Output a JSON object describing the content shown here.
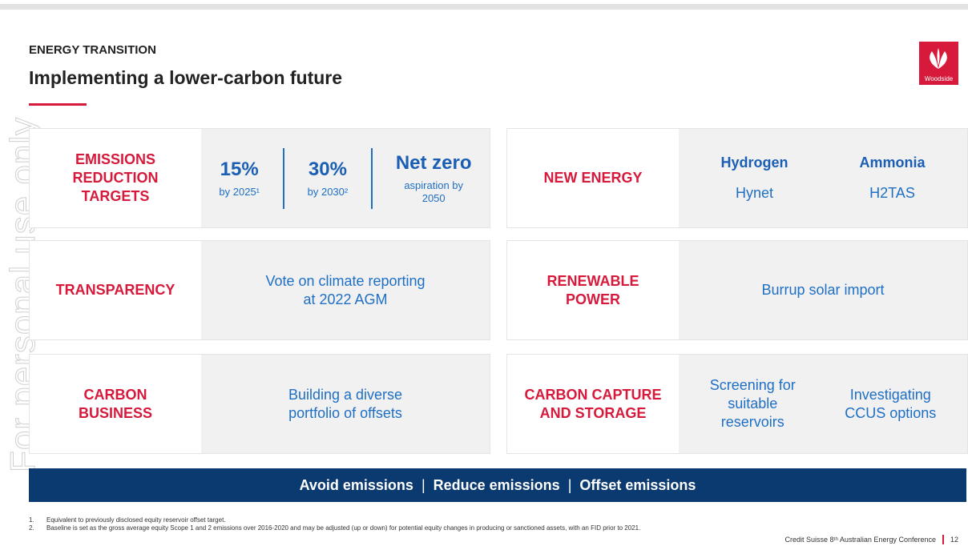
{
  "header": {
    "kicker": "ENERGY TRANSITION",
    "title": "Implementing a lower-carbon future",
    "logo": "Woodside"
  },
  "watermark": "For personal use only",
  "cards": [
    {
      "label_lines": [
        "EMISSIONS",
        "REDUCTION",
        "TARGETS"
      ],
      "style": "targets",
      "columns": [
        {
          "heading": "15%",
          "text_lines": [
            "by 2025¹"
          ]
        },
        {
          "heading": "30%",
          "text_lines": [
            "by 2030²"
          ]
        },
        {
          "heading": "Net zero",
          "text_lines": [
            "aspiration by",
            "2050"
          ]
        }
      ]
    },
    {
      "label_lines": [
        "NEW ENERGY"
      ],
      "style": "headed",
      "columns": [
        {
          "heading": "Hydrogen",
          "text_lines": [
            "Hynet"
          ]
        },
        {
          "heading": "Ammonia",
          "text_lines": [
            "H2TAS"
          ]
        }
      ]
    },
    {
      "label_lines": [
        "TRANSPARENCY"
      ],
      "style": "plain",
      "columns": [
        {
          "text_lines": [
            "Vote on climate reporting",
            "at 2022 AGM"
          ]
        }
      ]
    },
    {
      "label_lines": [
        "RENEWABLE",
        "POWER"
      ],
      "style": "plain",
      "columns": [
        {
          "text_lines": [
            "Burrup solar import"
          ]
        }
      ]
    },
    {
      "label_lines": [
        "CARBON",
        "BUSINESS"
      ],
      "style": "plain",
      "columns": [
        {
          "text_lines": [
            "Building a diverse",
            "portfolio of offsets"
          ]
        }
      ]
    },
    {
      "label_lines": [
        "CARBON CAPTURE",
        "AND STORAGE"
      ],
      "style": "plain",
      "columns": [
        {
          "text_lines": [
            "Screening for",
            "suitable",
            "reservoirs"
          ]
        },
        {
          "text_lines": [
            "Investigating",
            "CCUS options"
          ]
        }
      ]
    }
  ],
  "banner": [
    "Avoid emissions",
    "Reduce emissions",
    "Offset emissions"
  ],
  "banner_separator": "|",
  "footnotes": [
    {
      "num": "1.",
      "text": "Equivalent to previously disclosed equity reservoir offset target."
    },
    {
      "num": "2.",
      "text": "Baseline is set as the gross average equity Scope 1 and 2 emissions over 2016-2020 and may be adjusted (up or down) for potential equity changes in producing or sanctioned assets, with an FID prior to 2021."
    }
  ],
  "footer": {
    "text": "Credit Suisse 8ᵗʰ Australian Energy Conference",
    "page": "12"
  }
}
